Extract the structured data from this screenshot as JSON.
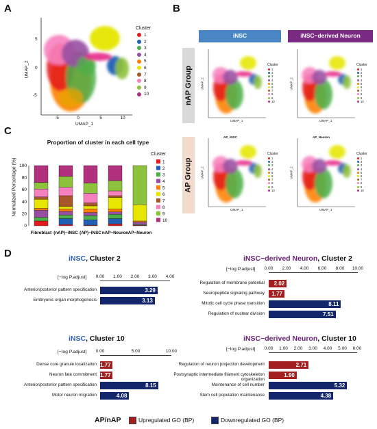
{
  "panels": {
    "A": "A",
    "B": "B",
    "C": "C",
    "D": "D"
  },
  "cluster_colors": [
    "#e41a1c",
    "#1f5fb4",
    "#4daf4a",
    "#984ea3",
    "#ff7f00",
    "#e6e600",
    "#a65628",
    "#f781bf",
    "#8ec13c",
    "#b0307e"
  ],
  "panelA": {
    "xlabel": "UMAP_1",
    "ylabel": "UMAP_2",
    "xticks": [
      "-5",
      "0",
      "5",
      "10"
    ],
    "yticks": [
      "5",
      "0",
      "-5"
    ],
    "legend_title": "Cluster",
    "legend_items": [
      "1",
      "2",
      "3",
      "4",
      "5",
      "6",
      "7",
      "8",
      "9",
      "10"
    ]
  },
  "panelB": {
    "col_headers": [
      "iNSC",
      "iNSC−derived Neuron"
    ],
    "row_labels": [
      "nAP Group",
      "AP Group"
    ],
    "plot_titles": [
      "",
      "",
      "AP_iNSC",
      "AP_Neuron"
    ],
    "xlabel": "UMAP_1",
    "ylabel": "UMAP_2",
    "legend_title": "Cluster",
    "header_colors": {
      "insc": "#4a86c5",
      "neuron": "#7b2a84"
    }
  },
  "panelC": {
    "chart_data": {
      "type": "bar",
      "stacked": true,
      "title": "Proportion of cluster in each cell type",
      "ylabel": "Normalized Percentage (%)",
      "xlabel": "",
      "ylim": [
        0,
        100
      ],
      "yticks": [
        "0",
        "20",
        "40",
        "60",
        "80",
        "100"
      ],
      "categories": [
        "Fibroblast",
        "(nAP)−iNSC",
        "(AP)−iNSC",
        "nAP−Neuron",
        "AP−Neuron"
      ],
      "legend_title": "Cluster",
      "series": [
        {
          "name": "1",
          "values": [
            8,
            2,
            1,
            3,
            1
          ]
        },
        {
          "name": "2",
          "values": [
            0,
            10,
            9,
            9,
            0
          ]
        },
        {
          "name": "3",
          "values": [
            6,
            6,
            7,
            7,
            1
          ]
        },
        {
          "name": "4",
          "values": [
            12,
            6,
            5,
            4,
            4
          ]
        },
        {
          "name": "5",
          "values": [
            3,
            4,
            6,
            5,
            2
          ]
        },
        {
          "name": "6",
          "values": [
            15,
            4,
            5,
            19,
            27
          ]
        },
        {
          "name": "7",
          "values": [
            4,
            18,
            5,
            3,
            0
          ]
        },
        {
          "name": "8",
          "values": [
            13,
            14,
            16,
            8,
            0
          ]
        },
        {
          "name": "9",
          "values": [
            11,
            18,
            17,
            17,
            65
          ]
        },
        {
          "name": "10",
          "values": [
            28,
            18,
            29,
            25,
            0
          ]
        }
      ]
    }
  },
  "panelD": {
    "axis_title": "[−log P.adjust]",
    "plots": [
      {
        "title_a": "iNSC",
        "title_b": ", Cluster 2",
        "ticks": [
          "0.00",
          "1.00",
          "2.00",
          "3.00",
          "4.00"
        ],
        "max": 4,
        "rows": [
          {
            "label": "Anterior/posterior pattern specification",
            "value": 3.29,
            "value_text": "3.29",
            "dir": "down"
          },
          {
            "label": "Embryonic organ morphogenesis",
            "value": 3.13,
            "value_text": "3.13",
            "dir": "down"
          }
        ]
      },
      {
        "title_a": "iNSC−derived Neuron",
        "title_b": ", Cluster 2",
        "ticks": [
          "0.00",
          "2.00",
          "4.00",
          "6.00",
          "8.00",
          "10.00"
        ],
        "max": 10,
        "rows": [
          {
            "label": "Regulation of membrane potential",
            "value": 2.02,
            "value_text": "2.02",
            "dir": "up"
          },
          {
            "label": "Neuropeptide signaling pathway",
            "value": 1.77,
            "value_text": "1.77",
            "dir": "up"
          },
          {
            "label": "Mitotic cell cycle phase transition",
            "value": 8.11,
            "value_text": "8.11",
            "dir": "down"
          },
          {
            "label": "Regulation of nuclear division",
            "value": 7.51,
            "value_text": "7.51",
            "dir": "down"
          }
        ]
      },
      {
        "title_a": "iNSC",
        "title_b": ", Cluster 10",
        "ticks": [
          "0.00",
          "5.00",
          "10.00"
        ],
        "max": 10,
        "rows": [
          {
            "label": "Dense core granule localization",
            "value": 1.77,
            "value_text": "1.77",
            "dir": "up"
          },
          {
            "label": "Neuron fate commitment",
            "value": 1.77,
            "value_text": "1.77",
            "dir": "up"
          },
          {
            "label": "Anterior/posterior pattern specification",
            "value": 8.15,
            "value_text": "8.15",
            "dir": "down"
          },
          {
            "label": "Motor neuron migration",
            "value": 4.08,
            "value_text": "4.08",
            "dir": "down"
          }
        ]
      },
      {
        "title_a": "iNSC−derived Neuron",
        "title_b": ", Cluster 10",
        "ticks": [
          "0.00",
          "1.00",
          "2.00",
          "3.00",
          "4.00",
          "5.00",
          "6.00"
        ],
        "max": 6,
        "rows": [
          {
            "label": "Regulation of neuron projection development",
            "value": 2.71,
            "value_text": "2.71",
            "dir": "up"
          },
          {
            "label": "Postsynaptic intermediate filament cytoskeleton organization",
            "value": 1.9,
            "value_text": "1.90",
            "dir": "up"
          },
          {
            "label": "Maintenance of cell number",
            "value": 5.32,
            "value_text": "5.32",
            "dir": "down"
          },
          {
            "label": "Stem cell population maintenance",
            "value": 4.38,
            "value_text": "4.38",
            "dir": "down"
          }
        ]
      }
    ],
    "legend": {
      "title": "AP/nAP",
      "up_label": "Upregulated GO (BP)",
      "down_label": "Downregulated GO (BP)",
      "up_color": "#a31f1f",
      "down_color": "#14266b"
    }
  }
}
